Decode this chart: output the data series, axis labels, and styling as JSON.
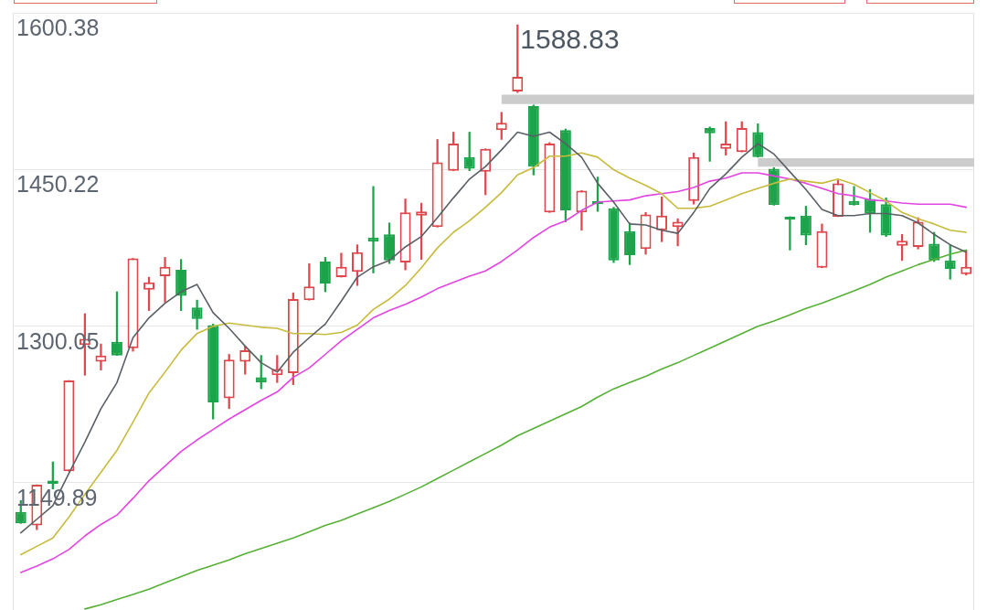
{
  "chart_data": {
    "type": "candlestick",
    "categories": [
      null,
      null,
      null,
      null,
      null,
      null,
      null,
      null,
      null,
      null,
      null,
      null,
      null,
      null,
      null,
      null,
      null,
      null,
      null,
      null,
      null,
      null,
      null,
      null,
      null,
      null,
      null,
      null,
      null,
      null,
      null,
      null,
      null,
      null,
      null,
      null,
      null,
      null,
      null,
      null,
      null,
      null,
      null,
      null,
      null,
      null,
      null,
      null,
      null,
      null,
      null,
      null,
      null,
      null,
      null,
      null,
      null,
      null,
      null,
      null
    ],
    "ohlc": [
      [
        1122,
        1133,
        1111,
        1111
      ],
      [
        1109,
        1148,
        1105,
        1148
      ],
      [
        1152,
        1170,
        1144,
        1149
      ],
      [
        1161,
        1248,
        1161,
        1248
      ],
      [
        1282,
        1312,
        1253,
        1288
      ],
      [
        1266,
        1283,
        1258,
        1272
      ],
      [
        1285,
        1333,
        1272,
        1272
      ],
      [
        1279,
        1365,
        1276,
        1365
      ],
      [
        1335,
        1347,
        1315,
        1342
      ],
      [
        1348,
        1366,
        1323,
        1357
      ],
      [
        1354,
        1364,
        1315,
        1329
      ],
      [
        1318,
        1325,
        1297,
        1307
      ],
      [
        1301,
        1302,
        1211,
        1227
      ],
      [
        1231,
        1273,
        1221,
        1268
      ],
      [
        1266,
        1281,
        1254,
        1277
      ],
      [
        1251,
        1272,
        1240,
        1246
      ],
      [
        1253,
        1272,
        1246,
        1259
      ],
      [
        1255,
        1332,
        1244,
        1326
      ],
      [
        1325,
        1360,
        1325,
        1338
      ],
      [
        1362,
        1366,
        1333,
        1341
      ],
      [
        1347,
        1370,
        1347,
        1357
      ],
      [
        1352,
        1378,
        1339,
        1371
      ],
      [
        1385,
        1434,
        1351,
        1381
      ],
      [
        1388,
        1399,
        1360,
        1363
      ],
      [
        1361,
        1422,
        1354,
        1409
      ],
      [
        1406,
        1418,
        1364,
        1410
      ],
      [
        1395,
        1479,
        1395,
        1457
      ],
      [
        1449,
        1486,
        1449,
        1475
      ],
      [
        1462,
        1486,
        1449,
        1451
      ],
      [
        1448,
        1470,
        1426,
        1470
      ],
      [
        1488,
        1505,
        1479,
        1495
      ],
      [
        1525,
        1588.83,
        1524,
        1539
      ],
      [
        1511,
        1512,
        1445,
        1453
      ],
      [
        1409,
        1476,
        1409,
        1475
      ],
      [
        1488,
        1489,
        1400,
        1411
      ],
      [
        1409,
        1430,
        1392,
        1430
      ],
      [
        1420,
        1443,
        1410,
        1417
      ],
      [
        1413,
        1414,
        1361,
        1363
      ],
      [
        1391,
        1399,
        1359,
        1368
      ],
      [
        1374,
        1409,
        1369,
        1407
      ],
      [
        1392,
        1424,
        1381,
        1406
      ],
      [
        1395,
        1403,
        1377,
        1400
      ],
      [
        1420,
        1466,
        1417,
        1462
      ],
      [
        1490,
        1491,
        1458,
        1485
      ],
      [
        1470,
        1496,
        1464,
        1475
      ],
      [
        1467,
        1496,
        1467,
        1490
      ],
      [
        1486,
        1494,
        1462,
        1462
      ],
      [
        1451,
        1452,
        1416,
        1416
      ],
      [
        1405,
        1405,
        1373,
        1402
      ],
      [
        1406,
        1415,
        1378,
        1387
      ],
      [
        1356,
        1398,
        1356,
        1391
      ],
      [
        1405,
        1440,
        1405,
        1437
      ],
      [
        1420,
        1434,
        1416,
        1416
      ],
      [
        1422,
        1431,
        1390,
        1408
      ],
      [
        1417,
        1423,
        1386,
        1387
      ],
      [
        1377,
        1388,
        1363,
        1382
      ],
      [
        1376,
        1404,
        1374,
        1400
      ],
      [
        1379,
        1390,
        1362,
        1363
      ],
      [
        1363,
        1378,
        1345,
        1355
      ],
      [
        1350,
        1373,
        1349,
        1357
      ]
    ],
    "colors": [
      "#1da34a",
      "#e0474c",
      "#1da34a",
      "#e0474c",
      "#e0474c",
      "#e0474c",
      "#1da34a",
      "#e0474c",
      "#e0474c",
      "#e0474c",
      "#1da34a",
      "#1da34a",
      "#1da34a",
      "#e0474c",
      "#e0474c",
      "#1da34a",
      "#e0474c",
      "#e0474c",
      "#e0474c",
      "#1da34a",
      "#e0474c",
      "#e0474c",
      "#1da34a",
      "#1da34a",
      "#e0474c",
      "#e0474c",
      "#e0474c",
      "#e0474c",
      "#1da34a",
      "#e0474c",
      "#e0474c",
      "#e0474c",
      "#1da34a",
      "#e0474c",
      "#1da34a",
      "#e0474c",
      "#1da34a",
      "#1da34a",
      "#1da34a",
      "#e0474c",
      "#e0474c",
      "#e0474c",
      "#e0474c",
      "#1da34a",
      "#e0474c",
      "#e0474c",
      "#1da34a",
      "#1da34a",
      "#1da34a",
      "#1da34a",
      "#e0474c",
      "#e0474c",
      "#1da34a",
      "#1da34a",
      "#1da34a",
      "#e0474c",
      "#e0474c",
      "#1da34a",
      "#1da34a",
      "#e0474c"
    ],
    "series": [
      {
        "type": "line",
        "color": "#5a5f66",
        "values": [
          1102,
          1115,
          1128,
          1159,
          1189,
          1221,
          1246,
          1289,
          1308,
          1322,
          1333,
          1340,
          1313,
          1298,
          1281,
          1265,
          1256,
          1275,
          1289,
          1302,
          1324,
          1347,
          1357,
          1363,
          1376,
          1386,
          1404,
          1423,
          1441,
          1453,
          1469,
          1486,
          1482,
          1486,
          1475,
          1462,
          1437,
          1419,
          1398,
          1397,
          1392,
          1389,
          1409,
          1432,
          1446,
          1462,
          1475,
          1465,
          1448,
          1431,
          1412,
          1406,
          1406,
          1408,
          1408,
          1406,
          1399,
          1388,
          1378,
          1371
        ]
      },
      {
        "type": "line",
        "color": "#c8bb3c",
        "values": [
          1081,
          1089,
          1097,
          1117,
          1139,
          1160,
          1181,
          1208,
          1236,
          1256,
          1277,
          1293,
          1300,
          1303,
          1301,
          1299,
          1298,
          1293,
          1293,
          1292,
          1294,
          1301,
          1316,
          1326,
          1339,
          1356,
          1375,
          1390,
          1401,
          1414,
          1428,
          1445,
          1452,
          1463,
          1463,
          1466,
          1462,
          1450,
          1442,
          1435,
          1427,
          1413,
          1413,
          1415,
          1421,
          1427,
          1432,
          1437,
          1441,
          1439,
          1437,
          1441,
          1436,
          1428,
          1420,
          1409,
          1403,
          1398,
          1392,
          1390
        ]
      },
      {
        "type": "line",
        "color": "#e244e2",
        "values": [
          1064,
          1070,
          1077,
          1086,
          1099,
          1110,
          1119,
          1135,
          1152,
          1166,
          1180,
          1191,
          1201,
          1211,
          1220,
          1229,
          1237,
          1251,
          1260,
          1273,
          1286,
          1297,
          1308,
          1315,
          1321,
          1328,
          1336,
          1342,
          1348,
          1353,
          1362,
          1373,
          1385,
          1395,
          1401,
          1411,
          1419,
          1420,
          1421,
          1425,
          1427,
          1429,
          1433,
          1439,
          1442,
          1447,
          1447,
          1444,
          1441,
          1437,
          1432,
          1427,
          1425,
          1421,
          1420,
          1418,
          1417,
          1417,
          1417,
          1414
        ]
      },
      {
        "type": "line",
        "color": "#56b035",
        "values": [
          null,
          null,
          null,
          null,
          1029,
          1033,
          1038,
          1043,
          1048,
          1054,
          1060,
          1066,
          1071,
          1076,
          1082,
          1087,
          1092,
          1097,
          1103,
          1109,
          1114,
          1120,
          1126,
          1132,
          1139,
          1146,
          1154,
          1162,
          1170,
          1178,
          1186,
          1195,
          1202,
          1209,
          1216,
          1223,
          1232,
          1240,
          1246,
          1252,
          1259,
          1265,
          1272,
          1279,
          1286,
          1293,
          1300,
          1305,
          1311,
          1317,
          1322,
          1328,
          1334,
          1340,
          1347,
          1353,
          1359,
          1364,
          1369,
          1373
        ]
      }
    ],
    "ylim": [
      1028,
      1600.38
    ],
    "yticks": [
      1149.89,
      1300.05,
      1450.22,
      1600.38
    ],
    "grid": "y",
    "tick_labels": "y",
    "bands": [
      {
        "axis": "y",
        "from": 1513,
        "to": 1522,
        "color": "#cccccc"
      },
      {
        "axis": "y",
        "from": 1453,
        "to": 1461,
        "color": "#cccccc"
      }
    ],
    "annotations": [
      "1588.83"
    ]
  }
}
